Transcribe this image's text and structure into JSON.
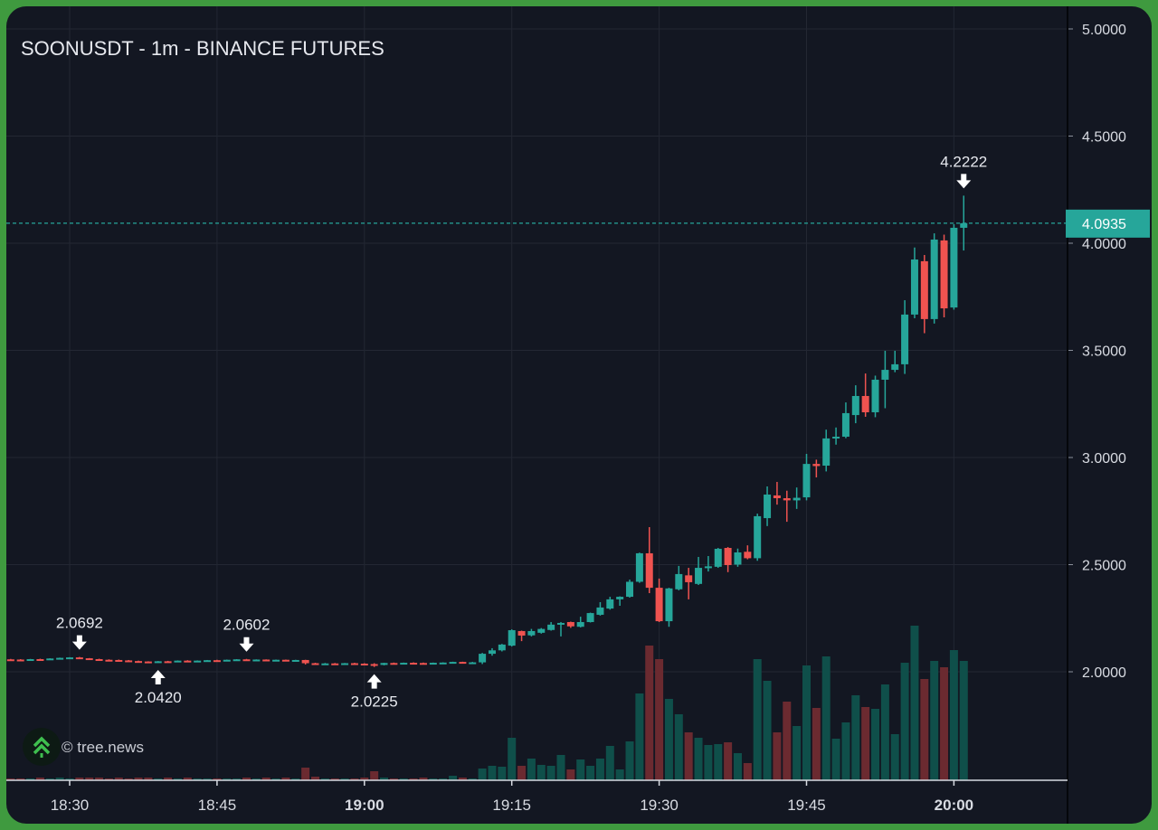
{
  "chart_data": {
    "type": "candlestick",
    "title": "SOONUSDT - 1m - BINANCE FUTURES",
    "credit": "© tree.news",
    "colors": {
      "up": "#26a69a",
      "down": "#ef5350",
      "volume_up": "#0f4f4a",
      "volume_down": "#6b2a30",
      "background": "#131722",
      "frame": "#3f9a3f"
    },
    "y_ticks": [
      "5.0000",
      "4.5000",
      "4.0000",
      "3.5000",
      "3.0000",
      "2.5000",
      "2.0000"
    ],
    "x_ticks": [
      {
        "label": "18:30",
        "bold": false
      },
      {
        "label": "18:45",
        "bold": false
      },
      {
        "label": "19:00",
        "bold": true
      },
      {
        "label": "19:15",
        "bold": false
      },
      {
        "label": "19:30",
        "bold": false
      },
      {
        "label": "19:45",
        "bold": false
      },
      {
        "label": "20:00",
        "bold": true
      }
    ],
    "ylim": [
      2.0,
      5.0
    ],
    "last_price": "4.0935",
    "grid": true,
    "annotations": [
      {
        "time": "18:31",
        "price": "2.0692",
        "type": "high"
      },
      {
        "time": "18:39",
        "price": "2.0420",
        "type": "low"
      },
      {
        "time": "18:48",
        "price": "2.0602",
        "type": "high"
      },
      {
        "time": "19:01",
        "price": "2.0225",
        "type": "low"
      },
      {
        "time": "20:01",
        "price": "4.2222",
        "type": "high"
      }
    ],
    "candle_fields": [
      "time",
      "open",
      "high",
      "low",
      "close",
      "volume"
    ],
    "candles": [
      [
        "18:24",
        2.058,
        2.06,
        2.056,
        2.057,
        2
      ],
      [
        "18:25",
        2.057,
        2.059,
        2.055,
        2.056,
        2
      ],
      [
        "18:26",
        2.056,
        2.06,
        2.055,
        2.059,
        2
      ],
      [
        "18:27",
        2.059,
        2.061,
        2.056,
        2.058,
        3
      ],
      [
        "18:28",
        2.058,
        2.063,
        2.057,
        2.062,
        2
      ],
      [
        "18:29",
        2.062,
        2.066,
        2.06,
        2.065,
        3
      ],
      [
        "18:30",
        2.065,
        2.068,
        2.063,
        2.067,
        2
      ],
      [
        "18:31",
        2.067,
        2.0692,
        2.062,
        2.063,
        3
      ],
      [
        "18:32",
        2.063,
        2.064,
        2.058,
        2.059,
        3
      ],
      [
        "18:33",
        2.059,
        2.061,
        2.055,
        2.056,
        3
      ],
      [
        "18:34",
        2.056,
        2.058,
        2.052,
        2.055,
        2
      ],
      [
        "18:35",
        2.055,
        2.057,
        2.051,
        2.053,
        3
      ],
      [
        "18:36",
        2.053,
        2.055,
        2.049,
        2.05,
        2
      ],
      [
        "18:37",
        2.05,
        2.052,
        2.046,
        2.048,
        3
      ],
      [
        "18:38",
        2.048,
        2.049,
        2.043,
        2.045,
        3
      ],
      [
        "18:39",
        2.045,
        2.05,
        2.042,
        2.049,
        2
      ],
      [
        "18:40",
        2.049,
        2.051,
        2.046,
        2.047,
        3
      ],
      [
        "18:41",
        2.047,
        2.053,
        2.046,
        2.052,
        2
      ],
      [
        "18:42",
        2.052,
        2.054,
        2.049,
        2.05,
        3
      ],
      [
        "18:43",
        2.05,
        2.053,
        2.048,
        2.052,
        2
      ],
      [
        "18:44",
        2.052,
        2.055,
        2.05,
        2.054,
        2
      ],
      [
        "18:45",
        2.054,
        2.056,
        2.051,
        2.053,
        2
      ],
      [
        "18:46",
        2.053,
        2.057,
        2.052,
        2.056,
        2
      ],
      [
        "18:47",
        2.056,
        2.059,
        2.054,
        2.058,
        2
      ],
      [
        "18:48",
        2.058,
        2.0602,
        2.055,
        2.056,
        3
      ],
      [
        "18:49",
        2.056,
        2.058,
        2.053,
        2.057,
        2
      ],
      [
        "18:50",
        2.057,
        2.058,
        2.053,
        2.055,
        3
      ],
      [
        "18:51",
        2.055,
        2.057,
        2.052,
        2.056,
        2
      ],
      [
        "18:52",
        2.056,
        2.057,
        2.052,
        2.054,
        3
      ],
      [
        "18:53",
        2.054,
        2.056,
        2.051,
        2.055,
        2
      ],
      [
        "18:54",
        2.055,
        2.056,
        2.034,
        2.04,
        14
      ],
      [
        "18:55",
        2.04,
        2.042,
        2.035,
        2.038,
        4
      ],
      [
        "18:56",
        2.038,
        2.041,
        2.034,
        2.039,
        2
      ],
      [
        "18:57",
        2.039,
        2.041,
        2.035,
        2.037,
        2
      ],
      [
        "18:58",
        2.037,
        2.041,
        2.035,
        2.04,
        2
      ],
      [
        "18:59",
        2.04,
        2.042,
        2.036,
        2.038,
        2
      ],
      [
        "19:00",
        2.038,
        2.04,
        2.033,
        2.036,
        3
      ],
      [
        "19:01",
        2.036,
        2.04,
        2.0225,
        2.032,
        10
      ],
      [
        "19:02",
        2.032,
        2.042,
        2.03,
        2.041,
        3
      ],
      [
        "19:03",
        2.041,
        2.043,
        2.038,
        2.04,
        2
      ],
      [
        "19:04",
        2.04,
        2.043,
        2.038,
        2.042,
        2
      ],
      [
        "19:05",
        2.042,
        2.044,
        2.039,
        2.041,
        2
      ],
      [
        "19:06",
        2.041,
        2.043,
        2.038,
        2.039,
        3
      ],
      [
        "19:07",
        2.039,
        2.043,
        2.038,
        2.042,
        2
      ],
      [
        "19:08",
        2.042,
        2.044,
        2.04,
        2.043,
        2
      ],
      [
        "19:09",
        2.043,
        2.047,
        2.042,
        2.046,
        5
      ],
      [
        "19:10",
        2.046,
        2.047,
        2.041,
        2.043,
        3
      ],
      [
        "19:11",
        2.043,
        2.046,
        2.04,
        2.044,
        2
      ],
      [
        "19:12",
        2.044,
        2.088,
        2.036,
        2.084,
        13
      ],
      [
        "19:13",
        2.084,
        2.11,
        2.075,
        2.1,
        16
      ],
      [
        "19:14",
        2.1,
        2.13,
        2.095,
        2.127,
        15
      ],
      [
        "19:15",
        2.122,
        2.198,
        2.118,
        2.194,
        47
      ],
      [
        "19:16",
        2.19,
        2.192,
        2.143,
        2.169,
        16
      ],
      [
        "19:17",
        2.17,
        2.2,
        2.165,
        2.19,
        24
      ],
      [
        "19:18",
        2.182,
        2.204,
        2.178,
        2.2,
        17
      ],
      [
        "19:19",
        2.195,
        2.232,
        2.192,
        2.22,
        16
      ],
      [
        "19:20",
        2.226,
        2.232,
        2.165,
        2.228,
        28
      ],
      [
        "19:21",
        2.232,
        2.234,
        2.205,
        2.212,
        12
      ],
      [
        "19:22",
        2.21,
        2.257,
        2.207,
        2.232,
        23
      ],
      [
        "19:23",
        2.232,
        2.276,
        2.23,
        2.274,
        16
      ],
      [
        "19:24",
        2.266,
        2.325,
        2.262,
        2.3,
        24
      ],
      [
        "19:25",
        2.295,
        2.35,
        2.29,
        2.338,
        38
      ],
      [
        "19:26",
        2.338,
        2.352,
        2.308,
        2.35,
        12
      ],
      [
        "19:27",
        2.35,
        2.43,
        2.346,
        2.42,
        43
      ],
      [
        "19:28",
        2.42,
        2.556,
        2.415,
        2.553,
        96
      ],
      [
        "19:29",
        2.553,
        2.675,
        2.367,
        2.392,
        149
      ],
      [
        "19:30",
        2.392,
        2.435,
        2.232,
        2.236,
        134
      ],
      [
        "19:31",
        2.236,
        2.392,
        2.21,
        2.389,
        90
      ],
      [
        "19:32",
        2.385,
        2.494,
        2.38,
        2.456,
        73
      ],
      [
        "19:33",
        2.45,
        2.485,
        2.338,
        2.418,
        53
      ],
      [
        "19:34",
        2.41,
        2.536,
        2.405,
        2.485,
        47
      ],
      [
        "19:35",
        2.485,
        2.54,
        2.468,
        2.492,
        39
      ],
      [
        "19:36",
        2.49,
        2.578,
        2.485,
        2.574,
        40
      ],
      [
        "19:37",
        2.578,
        2.582,
        2.465,
        2.498,
        42
      ],
      [
        "19:38",
        2.5,
        2.575,
        2.49,
        2.557,
        30
      ],
      [
        "19:39",
        2.56,
        2.59,
        2.525,
        2.53,
        19
      ],
      [
        "19:40",
        2.53,
        2.738,
        2.518,
        2.726,
        134
      ],
      [
        "19:41",
        2.717,
        2.865,
        2.68,
        2.827,
        110
      ],
      [
        "19:42",
        2.823,
        2.886,
        2.78,
        2.81,
        53
      ],
      [
        "19:43",
        2.81,
        2.845,
        2.7,
        2.8,
        87
      ],
      [
        "19:44",
        2.8,
        2.86,
        2.76,
        2.812,
        60
      ],
      [
        "19:45",
        2.814,
        3.017,
        2.8,
        2.97,
        127
      ],
      [
        "19:46",
        2.97,
        2.99,
        2.907,
        2.96,
        80
      ],
      [
        "19:47",
        2.962,
        3.13,
        2.935,
        3.089,
        137
      ],
      [
        "19:48",
        3.089,
        3.14,
        3.06,
        3.097,
        46
      ],
      [
        "19:49",
        3.097,
        3.257,
        3.09,
        3.207,
        64
      ],
      [
        "19:50",
        3.198,
        3.337,
        3.16,
        3.287,
        94
      ],
      [
        "19:51",
        3.287,
        3.392,
        3.19,
        3.211,
        81
      ],
      [
        "19:52",
        3.211,
        3.382,
        3.188,
        3.363,
        79
      ],
      [
        "19:53",
        3.363,
        3.498,
        3.23,
        3.409,
        106
      ],
      [
        "19:54",
        3.409,
        3.498,
        3.398,
        3.435,
        51
      ],
      [
        "19:55",
        3.435,
        3.734,
        3.39,
        3.667,
        130
      ],
      [
        "19:56",
        3.667,
        3.98,
        3.65,
        3.924,
        171
      ],
      [
        "19:57",
        3.916,
        3.945,
        3.58,
        3.646,
        112
      ],
      [
        "19:58",
        3.646,
        4.046,
        3.625,
        4.017,
        132
      ],
      [
        "19:59",
        4.013,
        4.04,
        3.654,
        3.696,
        125
      ],
      [
        "20:00",
        3.7,
        4.089,
        3.69,
        4.072,
        144
      ],
      [
        "20:01",
        4.072,
        4.222,
        3.966,
        4.0935,
        132
      ]
    ]
  }
}
